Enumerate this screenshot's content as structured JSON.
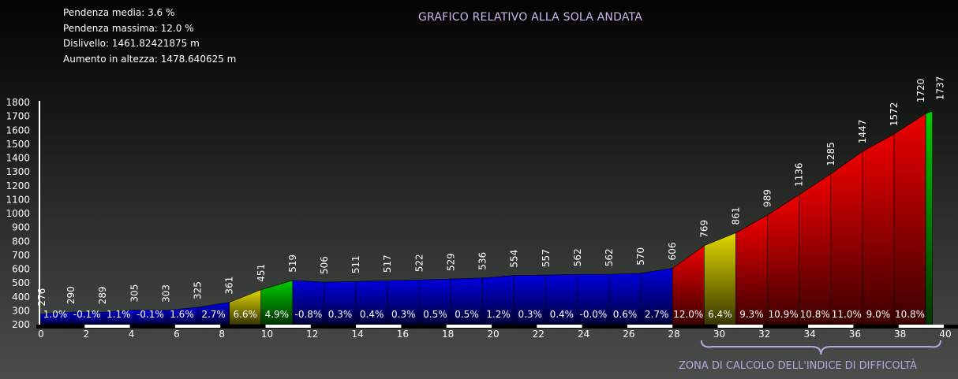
{
  "stats": {
    "avg_grade": "Pendenza media: 3.6 %",
    "max_grade": "Pendenza massima: 12.0 %",
    "elevation_diff": "Dislivello: 1461.82421875 m",
    "total_gain": "Aumento in altezza: 1478.640625 m"
  },
  "title": "GRAFICO RELATIVO ALLA SOLA ANDATA",
  "zone_label": "ZONA DI CALCOLO DELL'INDICE DI DIFFICOLTÀ",
  "colors": {
    "blue": "#0000dd",
    "yellow": "#e0d800",
    "green": "#00cc00",
    "red": "#ee0000",
    "zone_brace": "#b8a6e0"
  },
  "chart_data": {
    "type": "area",
    "title": "GRAFICO RELATIVO ALLA SOLA ANDATA",
    "xlabel": "",
    "ylabel": "",
    "xlim": [
      0,
      40
    ],
    "ylim": [
      200,
      1800
    ],
    "y_ticks": [
      200,
      300,
      400,
      500,
      600,
      700,
      800,
      900,
      1000,
      1100,
      1200,
      1300,
      1400,
      1500,
      1600,
      1700,
      1800
    ],
    "x_ticks": [
      0,
      2,
      4,
      6,
      8,
      10,
      12,
      14,
      16,
      18,
      20,
      22,
      24,
      26,
      28,
      30,
      32,
      34,
      36,
      38,
      40
    ],
    "x_km": [
      0,
      1.4,
      2.8,
      4.2,
      5.6,
      7.0,
      8.4,
      9.8,
      11.2,
      12.6,
      14.0,
      15.4,
      16.8,
      18.2,
      19.6,
      21.0,
      22.4,
      23.8,
      25.2,
      26.6,
      28.0,
      29.4,
      30.8,
      32.2,
      33.6,
      35.0,
      36.4,
      37.8,
      39.2,
      39.5
    ],
    "elevations": [
      276,
      290,
      289,
      305,
      303,
      325,
      361,
      451,
      519,
      506,
      511,
      517,
      522,
      529,
      536,
      554,
      557,
      562,
      562,
      570,
      606,
      769,
      861,
      989,
      1136,
      1285,
      1447,
      1572,
      1720,
      1737
    ],
    "segment_grades": [
      "1.0%",
      "-0.1%",
      "1.1%",
      "-0.1%",
      "1.6%",
      "2.7%",
      "6.6%",
      "4.9%",
      "-0.8%",
      "0.3%",
      "0.4%",
      "0.3%",
      "0.5%",
      "0.5%",
      "1.2%",
      "0.3%",
      "0.4%",
      "-0.0%",
      "0.6%",
      "2.7%",
      "12.0%",
      "6.4%",
      "9.3%",
      "10.9%",
      "10.8%",
      "11.0%",
      "9.0%",
      "10.8%",
      ""
    ],
    "segment_colors": [
      "blue",
      "blue",
      "blue",
      "blue",
      "blue",
      "blue",
      "yellow",
      "green",
      "blue",
      "blue",
      "blue",
      "blue",
      "blue",
      "blue",
      "blue",
      "blue",
      "blue",
      "blue",
      "blue",
      "blue",
      "red",
      "yellow",
      "red",
      "red",
      "red",
      "red",
      "red",
      "red",
      "green"
    ],
    "difficulty_zone": [
      29,
      40
    ],
    "grid": false,
    "legend": "none"
  }
}
